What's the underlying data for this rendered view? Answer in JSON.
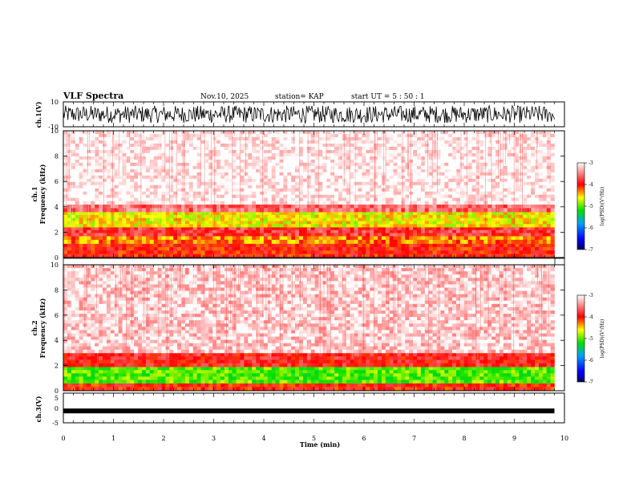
{
  "header": {
    "title": "VLF Spectra",
    "date": "Nov.10, 2025",
    "station": "station= KAP",
    "start_ut": "start  UT  =   5  : 50 : 1"
  },
  "chart_data": [
    {
      "type": "line",
      "panel": "ch1-waveform",
      "ylabel": "ch.1(V)",
      "yticklabels": [
        "10",
        "-10"
      ],
      "ylim": [
        -10,
        10
      ],
      "xlim": [
        0,
        10
      ],
      "description_series": "dense noise-like waveform, amplitude roughly +/-7 V, 0 to 9.8 min",
      "color": "#000000"
    },
    {
      "type": "heatmap",
      "panel": "ch1-spectrogram",
      "ylabel": "ch.1 Frequency (kHz)",
      "ylabel_line1": "ch.1",
      "ylabel_line2": "Frequency  (kHz)",
      "yticks": [
        0,
        2,
        4,
        6,
        8,
        10
      ],
      "ylim": [
        0,
        10
      ],
      "xlim": [
        0,
        10
      ],
      "data_end_min": 9.8,
      "bands": [
        {
          "from_khz": 0.0,
          "to_khz": 1.1,
          "level": -4.0
        },
        {
          "from_khz": 1.1,
          "to_khz": 1.7,
          "level": -4.3
        },
        {
          "from_khz": 1.7,
          "to_khz": 2.4,
          "level": -3.8
        },
        {
          "from_khz": 2.4,
          "to_khz": 3.6,
          "level": -4.6
        },
        {
          "from_khz": 3.6,
          "to_khz": 4.2,
          "level": -3.6
        },
        {
          "from_khz": 4.2,
          "to_khz": 10.0,
          "level": -3.05
        }
      ],
      "colorbar": {
        "label": "log(PSD)(V²/Hz)",
        "ticks": [
          "-3",
          "-4",
          "-5",
          "-6",
          "-7"
        ],
        "range": [
          -7,
          -3
        ]
      }
    },
    {
      "type": "heatmap",
      "panel": "ch2-spectrogram",
      "ylabel": "ch.2 Frequency (kHz)",
      "ylabel_line1": "ch.2",
      "ylabel_line2": "Frequency  (kHz)",
      "yticks": [
        0,
        2,
        4,
        6,
        8,
        10
      ],
      "ylim": [
        0,
        10
      ],
      "xlim": [
        0,
        10
      ],
      "data_end_min": 9.8,
      "bands": [
        {
          "from_khz": 0.0,
          "to_khz": 0.6,
          "level": -4.0
        },
        {
          "from_khz": 0.6,
          "to_khz": 1.9,
          "level": -5.0
        },
        {
          "from_khz": 1.9,
          "to_khz": 3.0,
          "level": -3.9
        },
        {
          "from_khz": 3.0,
          "to_khz": 10.0,
          "level": -3.2
        }
      ],
      "colorbar": {
        "label": "log(PSD)(V²/Hz)",
        "ticks": [
          "-3",
          "-4",
          "-5",
          "-6",
          "-7"
        ],
        "range": [
          -7,
          -3
        ]
      }
    },
    {
      "type": "line",
      "panel": "ch3-waveform",
      "ylabel": "ch.3(V)",
      "yticklabels": [
        "5",
        "0",
        "-5"
      ],
      "ylim": [
        -5,
        5
      ],
      "xlim": [
        0,
        10
      ],
      "description_series": "near-constant thick trace around -1 V",
      "level_v": -1,
      "xlabel": "Time  (min)",
      "xticks": [
        "0",
        "1",
        "2",
        "3",
        "4",
        "5",
        "6",
        "7",
        "8",
        "9",
        "10"
      ],
      "color": "#000000"
    }
  ]
}
